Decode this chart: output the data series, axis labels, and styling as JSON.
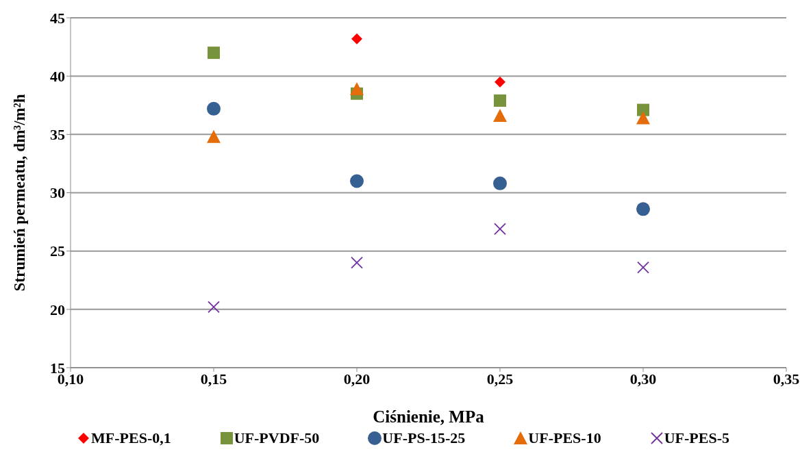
{
  "chart_data": {
    "type": "scatter",
    "xlabel": "Ciśnienie, MPa",
    "ylabel": "Strumień permeatu, dm³/m²h",
    "x": [
      0.15,
      0.2,
      0.25,
      0.3
    ],
    "series": [
      {
        "name": "MF-PES-0,1",
        "color": "#ff0000",
        "marker": "diamond",
        "values": [
          null,
          43.2,
          39.5,
          null
        ]
      },
      {
        "name": "UF-PVDF-50",
        "color": "#77933c",
        "marker": "square",
        "values": [
          42.0,
          38.5,
          37.9,
          37.1
        ]
      },
      {
        "name": "UF-PS-15-25",
        "color": "#376092",
        "marker": "circle",
        "values": [
          37.2,
          31.0,
          30.8,
          28.6
        ]
      },
      {
        "name": "UF-PES-10",
        "color": "#e46c0a",
        "marker": "triangle",
        "values": [
          34.8,
          38.9,
          36.6,
          36.4
        ]
      },
      {
        "name": "UF-PES-5",
        "color": "#7030a0",
        "marker": "cross",
        "values": [
          20.2,
          24.0,
          26.9,
          23.6
        ]
      }
    ],
    "xlim": [
      0.1,
      0.35
    ],
    "xticks": [
      {
        "value": 0.1,
        "label": "0,10"
      },
      {
        "value": 0.15,
        "label": "0,15"
      },
      {
        "value": 0.2,
        "label": "0,20"
      },
      {
        "value": 0.25,
        "label": "0,25"
      },
      {
        "value": 0.3,
        "label": "0,30"
      },
      {
        "value": 0.35,
        "label": "0,35"
      }
    ],
    "ylim": [
      15,
      45
    ],
    "yticks": [
      15,
      20,
      25,
      30,
      35,
      40,
      45
    ],
    "grid": "y",
    "legend": "bottom"
  }
}
